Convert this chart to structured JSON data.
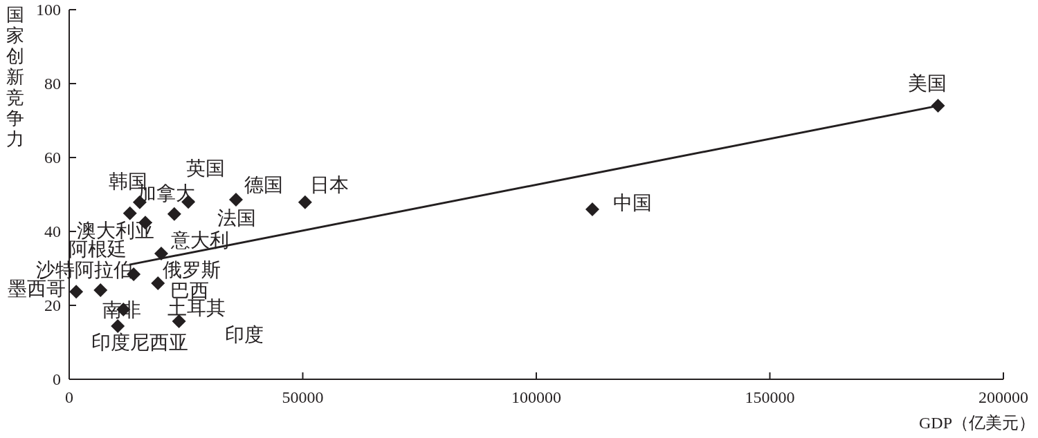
{
  "chart_data": {
    "type": "scatter",
    "xlabel": "GDP（亿美元）",
    "ylabel": "国家创新竞争力",
    "xlim": [
      0,
      200000
    ],
    "ylim": [
      0,
      100
    ],
    "xticks": [
      0,
      50000,
      100000,
      150000,
      200000
    ],
    "yticks": [
      0,
      20,
      40,
      60,
      80,
      100
    ],
    "grid": false,
    "marker": "diamond",
    "series": [
      {
        "color": "#231f20",
        "x": [
          186000,
          112000,
          50500,
          35700,
          15100,
          25500,
          13000,
          22500,
          16300,
          19700,
          13800,
          19000,
          6700,
          1500,
          11600,
          23500,
          10400
        ],
        "values": [
          74,
          46,
          47.9,
          48.6,
          47.9,
          48,
          44.9,
          44.7,
          42.4,
          34,
          28.4,
          26,
          24.1,
          23.7,
          18.9,
          15.7,
          14.4
        ]
      },
      {
        "type": "line",
        "color": "#231f20",
        "marker": "none",
        "line_style": "solid",
        "x": [
          12900,
          186000
        ],
        "values": [
          31,
          74
        ]
      }
    ],
    "annotations": [
      {
        "text": "美国",
        "x": 186000,
        "y": 74
      },
      {
        "text": "中国",
        "x": 112000,
        "y": 46
      },
      {
        "text": "日本",
        "x": 50500,
        "y": 47.9
      },
      {
        "text": "德国",
        "x": 35700,
        "y": 48.6
      },
      {
        "text": "英国",
        "x": 25500,
        "y": 48
      },
      {
        "text": "韩国",
        "x": 13000,
        "y": 44.9
      },
      {
        "text": "加拿大",
        "x": 15100,
        "y": 47.9
      },
      {
        "text": "法国",
        "x": 22500,
        "y": 44.7
      },
      {
        "text": "澳大利亚",
        "x": 16300,
        "y": 42.4
      },
      "阿根廷",
      {
        "text": "意大利",
        "x": 19700,
        "y": 34
      },
      {
        "text": "沙特阿拉伯",
        "x": 6700,
        "y": 24.1
      },
      {
        "text": "俄罗斯",
        "x": 13800,
        "y": 28.4
      },
      {
        "text": "墨西哥",
        "x": 1500,
        "y": 23.7
      },
      {
        "text": "巴西",
        "x": 19000,
        "y": 26
      },
      {
        "text": "南非",
        "x": 11600,
        "y": 18.9
      },
      "土耳其",
      {
        "text": "印度",
        "x": 23500,
        "y": 15.7
      },
      {
        "text": "印度尼西亚",
        "x": 10400,
        "y": 14.4
      }
    ]
  }
}
